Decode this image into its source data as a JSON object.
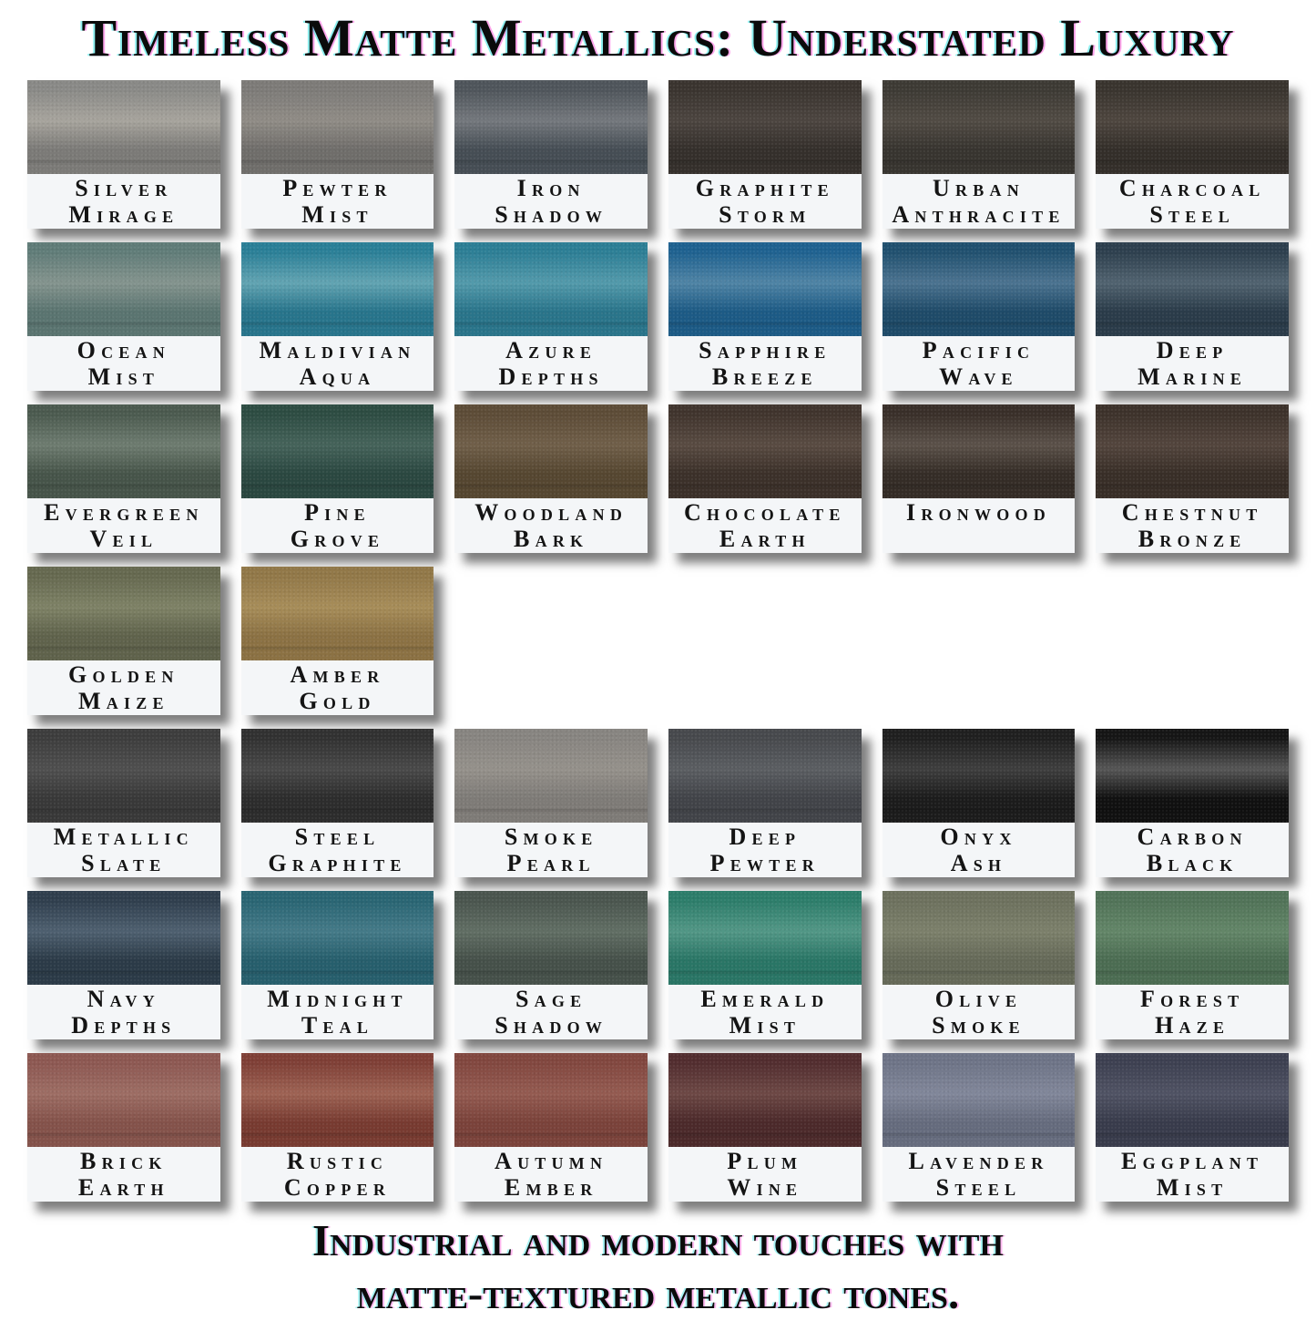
{
  "title": "Timeless Matte Metallics: Understated Luxury",
  "caption": {
    "line1": "Industrial and modern touches with",
    "line2": "matte-textured metallic tones."
  },
  "palette": {
    "page_bg": "#ffffff",
    "label_bg": "#f4f6f8",
    "label_text": "#141414",
    "title_text": "#0b0b0b",
    "shadow": "rgba(0,0,0,0.50)"
  },
  "grid": {
    "rows": [
      {
        "cells": [
          {
            "name": "Silver Mirage",
            "lines": [
              "Silver",
              "Mirage"
            ],
            "colors": {
              "top": "#8a8a87",
              "light": "#a7a49d",
              "bottom": "#7b7a77"
            }
          },
          {
            "name": "Pewter Mist",
            "lines": [
              "Pewter",
              "Mist"
            ],
            "colors": {
              "top": "#7d7b78",
              "light": "#908c86",
              "bottom": "#6f6d6a"
            }
          },
          {
            "name": "Iron Shadow",
            "lines": [
              "Iron",
              "Shadow"
            ],
            "colors": {
              "top": "#4f555b",
              "light": "#74787d",
              "bottom": "#454d54"
            }
          },
          {
            "name": "Graphite Storm",
            "lines": [
              "Graphite",
              "Storm"
            ],
            "colors": {
              "top": "#3a342f",
              "light": "#4c4540",
              "bottom": "#342f2b"
            }
          },
          {
            "name": "Urban Anthracite",
            "lines": [
              "Urban",
              "Anthracite"
            ],
            "colors": {
              "top": "#3d3a34",
              "light": "#514b44",
              "bottom": "#37342f"
            }
          },
          {
            "name": "Charcoal Steel",
            "lines": [
              "Charcoal",
              "Steel"
            ],
            "colors": {
              "top": "#39342e",
              "light": "#4e463f",
              "bottom": "#332e29"
            }
          }
        ]
      },
      {
        "cells": [
          {
            "name": "Ocean Mist",
            "lines": [
              "Ocean",
              "Mist"
            ],
            "colors": {
              "top": "#607c78",
              "light": "#84948e",
              "bottom": "#5a7470"
            }
          },
          {
            "name": "Maldivian Aqua",
            "lines": [
              "Maldivian",
              "Aqua"
            ],
            "colors": {
              "top": "#2a7f97",
              "light": "#62a4b2",
              "bottom": "#27748b"
            }
          },
          {
            "name": "Azure Depths",
            "lines": [
              "Azure",
              "Depths"
            ],
            "colors": {
              "top": "#2c7e95",
              "light": "#539aab",
              "bottom": "#29748a"
            }
          },
          {
            "name": "Sapphire Breeze",
            "lines": [
              "Sapphire",
              "Breeze"
            ],
            "colors": {
              "top": "#1e6190",
              "light": "#4f84a5",
              "bottom": "#1c5a85"
            }
          },
          {
            "name": "Pacific Wave",
            "lines": [
              "Pacific",
              "Wave"
            ],
            "colors": {
              "top": "#20506f",
              "light": "#4b7390",
              "bottom": "#1e4a68"
            }
          },
          {
            "name": "Deep Marine",
            "lines": [
              "Deep",
              "Marine"
            ],
            "colors": {
              "top": "#2d3f4e",
              "light": "#516370",
              "bottom": "#2a3b49"
            }
          }
        ]
      },
      {
        "cells": [
          {
            "name": "Evergreen Veil",
            "lines": [
              "Evergreen",
              "Veil"
            ],
            "colors": {
              "top": "#4b5a4f",
              "light": "#6e7c70",
              "bottom": "#465449"
            }
          },
          {
            "name": "Pine Grove",
            "lines": [
              "Pine",
              "Grove"
            ],
            "colors": {
              "top": "#2d4c42",
              "light": "#45635a",
              "bottom": "#2a4740"
            }
          },
          {
            "name": "Woodland Bark",
            "lines": [
              "Woodland",
              "Bark"
            ],
            "colors": {
              "top": "#5d4c37",
              "light": "#705f49",
              "bottom": "#554630"
            }
          },
          {
            "name": "Chocolate Earth",
            "lines": [
              "Chocolate",
              "Earth"
            ],
            "colors": {
              "top": "#40342d",
              "light": "#594b42",
              "bottom": "#3b3029"
            }
          },
          {
            "name": "Ironwood",
            "lines": [
              "Ironwood"
            ],
            "colors": {
              "top": "#392f29",
              "light": "#5b5149",
              "bottom": "#342c26"
            }
          },
          {
            "name": "Chestnut Bronze",
            "lines": [
              "Chestnut",
              "Bronze"
            ],
            "colors": {
              "top": "#3d322b",
              "light": "#53453d",
              "bottom": "#382e27"
            }
          }
        ]
      },
      {
        "cells": [
          {
            "name": "Golden Maize",
            "lines": [
              "Golden",
              "Maize"
            ],
            "colors": {
              "top": "#666950",
              "light": "#7e8266",
              "bottom": "#5f624b"
            }
          },
          {
            "name": "Amber Gold",
            "lines": [
              "Amber",
              "Gold"
            ],
            "colors": {
              "top": "#927848",
              "light": "#a78d59",
              "bottom": "#8b7143"
            }
          }
        ]
      },
      {
        "cells": [
          {
            "name": "Metallic Slate",
            "lines": [
              "Metallic",
              "Slate"
            ],
            "colors": {
              "top": "#3d3d3d",
              "light": "#4f4f4f",
              "bottom": "#383838"
            }
          },
          {
            "name": "Steel Graphite",
            "lines": [
              "Steel",
              "Graphite"
            ],
            "colors": {
              "top": "#313131",
              "light": "#494949",
              "bottom": "#2c2c2c"
            }
          },
          {
            "name": "Smoke Pearl",
            "lines": [
              "Smoke",
              "Pearl"
            ],
            "colors": {
              "top": "#888581",
              "light": "#95918b",
              "bottom": "#7e7b77"
            }
          },
          {
            "name": "Deep Pewter",
            "lines": [
              "Deep",
              "Pewter"
            ],
            "colors": {
              "top": "#47494d",
              "light": "#5b5e62",
              "bottom": "#414348"
            }
          },
          {
            "name": "Onyx Ash",
            "lines": [
              "Onyx",
              "Ash"
            ],
            "colors": {
              "top": "#1f1f1f",
              "light": "#3e3e3e",
              "bottom": "#1b1b1b"
            }
          },
          {
            "name": "Carbon Black",
            "lines": [
              "Carbon",
              "Black"
            ],
            "colors": {
              "top": "#151515",
              "light": "#565656",
              "bottom": "#101010"
            }
          }
        ]
      },
      {
        "cells": [
          {
            "name": "Navy Depths",
            "lines": [
              "Navy",
              "Depths"
            ],
            "colors": {
              "top": "#2f3e4d",
              "light": "#4e6070",
              "bottom": "#2b3a47"
            }
          },
          {
            "name": "Midnight Teal",
            "lines": [
              "Midnight",
              "Teal"
            ],
            "colors": {
              "top": "#296573",
              "light": "#447a88",
              "bottom": "#265e6c"
            }
          },
          {
            "name": "Sage Shadow",
            "lines": [
              "Sage",
              "Shadow"
            ],
            "colors": {
              "top": "#4a554e",
              "light": "#616e64",
              "bottom": "#455049"
            }
          },
          {
            "name": "Emerald Mist",
            "lines": [
              "Emerald",
              "Mist"
            ],
            "colors": {
              "top": "#2c7d6a",
              "light": "#529786",
              "bottom": "#297565"
            }
          },
          {
            "name": "Olive Smoke",
            "lines": [
              "Olive",
              "Smoke"
            ],
            "colors": {
              "top": "#6d715e",
              "light": "#7c806b",
              "bottom": "#656958"
            }
          },
          {
            "name": "Forest Haze",
            "lines": [
              "Forest",
              "Haze"
            ],
            "colors": {
              "top": "#517358",
              "light": "#638668",
              "bottom": "#4b6c52"
            }
          }
        ]
      },
      {
        "cells": [
          {
            "name": "Brick Earth",
            "lines": [
              "Brick",
              "Earth"
            ],
            "colors": {
              "top": "#8d5852",
              "light": "#9d6d64",
              "bottom": "#84524a"
            }
          },
          {
            "name": "Rustic Copper",
            "lines": [
              "Rustic",
              "Copper"
            ],
            "colors": {
              "top": "#7f3f36",
              "light": "#9e6354",
              "bottom": "#773a30"
            }
          },
          {
            "name": "Autumn Ember",
            "lines": [
              "Autumn",
              "Ember"
            ],
            "colors": {
              "top": "#82473f",
              "light": "#945b51",
              "bottom": "#7a423a"
            }
          },
          {
            "name": "Plum Wine",
            "lines": [
              "Plum",
              "Wine"
            ],
            "colors": {
              "top": "#522d2f",
              "light": "#6d4845",
              "bottom": "#4b292a"
            }
          },
          {
            "name": "Lavender Steel",
            "lines": [
              "Lavender",
              "Steel"
            ],
            "colors": {
              "top": "#6e7487",
              "light": "#81879a",
              "bottom": "#656b7d"
            }
          },
          {
            "name": "Eggplant Mist",
            "lines": [
              "Eggplant",
              "Mist"
            ],
            "colors": {
              "top": "#3d4051",
              "light": "#505364",
              "bottom": "#383b4b"
            }
          }
        ]
      }
    ]
  }
}
